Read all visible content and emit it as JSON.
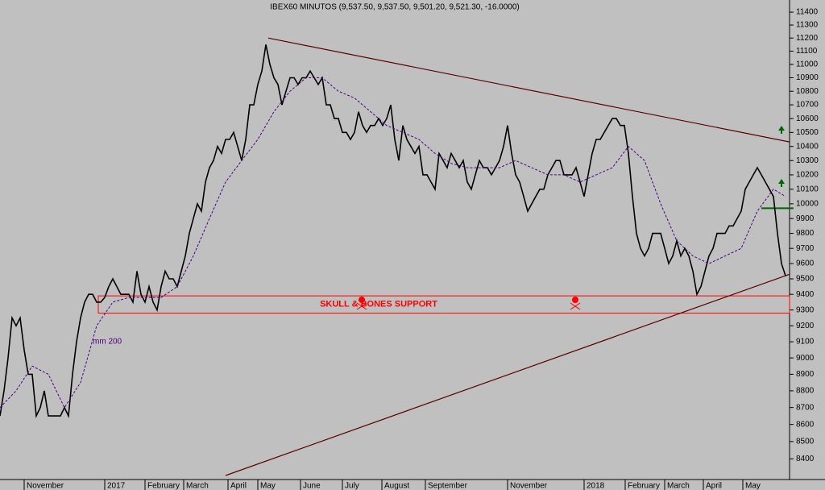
{
  "chart_data": {
    "type": "line",
    "title": "IBEX60 MINUTOS (9,537.50, 9,537.50, 9,501.20, 9,521.30, -16.0000)",
    "log_scale": true,
    "xlim": [
      0,
      196
    ],
    "ylim": [
      8305,
      11495
    ],
    "yticks": [
      8400,
      8500,
      8600,
      8700,
      8800,
      8900,
      9000,
      9100,
      9200,
      9300,
      9400,
      9500,
      9600,
      9700,
      9800,
      9900,
      10000,
      10100,
      10200,
      10300,
      10400,
      10500,
      10600,
      10700,
      10800,
      10900,
      11000,
      11100,
      11200,
      11300,
      11400
    ],
    "xticks": [
      {
        "value": 6,
        "label": "November"
      },
      {
        "value": 26,
        "label": "2017"
      },
      {
        "value": 36,
        "label": "February"
      },
      {
        "value": 45.6,
        "label": "March"
      },
      {
        "value": 56.6,
        "label": "April"
      },
      {
        "value": 64,
        "label": "May"
      },
      {
        "value": 74.6,
        "label": "June"
      },
      {
        "value": 85,
        "label": "July"
      },
      {
        "value": 94.8,
        "label": "August"
      },
      {
        "value": 105.6,
        "label": "September"
      },
      {
        "value": 126,
        "label": "November"
      },
      {
        "value": 145,
        "label": "2018"
      },
      {
        "value": 155.2,
        "label": "February"
      },
      {
        "value": 165,
        "label": "March"
      },
      {
        "value": 174.6,
        "label": "April"
      },
      {
        "value": 184.4,
        "label": "May"
      }
    ],
    "series": [
      {
        "color": "#000000",
        "x": [
          0,
          1,
          2,
          3,
          4,
          5,
          6,
          7,
          8,
          9,
          10,
          11,
          12,
          13,
          14,
          15,
          16,
          17,
          18,
          19,
          20,
          21,
          22,
          23,
          24,
          25,
          26,
          27,
          28,
          29,
          30,
          31,
          32,
          33,
          34,
          35,
          36,
          37,
          38,
          39,
          40,
          41,
          42,
          43,
          44,
          45,
          46,
          47,
          48,
          49,
          50,
          51,
          52,
          53,
          54,
          55,
          56,
          57,
          58,
          59,
          60,
          61,
          62,
          63,
          64,
          65,
          66,
          67,
          68,
          69,
          70,
          71,
          72,
          73,
          74,
          75,
          76,
          77,
          78,
          79,
          80,
          81,
          82,
          83,
          84,
          85,
          86,
          87,
          88,
          89,
          90,
          91,
          92,
          93,
          94,
          95,
          96,
          97,
          98,
          99,
          100,
          101,
          102,
          103,
          104,
          105,
          106,
          107,
          108,
          109,
          110,
          111,
          112,
          113,
          114,
          115,
          116,
          117,
          118,
          119,
          120,
          121,
          122,
          123,
          124,
          125,
          126,
          127,
          128,
          129,
          130,
          131,
          132,
          133,
          134,
          135,
          136,
          137,
          138,
          139,
          140,
          141,
          142,
          143,
          144,
          145,
          146,
          147,
          148,
          149,
          150,
          151,
          152,
          153,
          154,
          155,
          156,
          157,
          158,
          159,
          160,
          161,
          162,
          163,
          164,
          165,
          166,
          167,
          168,
          169,
          170,
          171,
          172,
          173,
          174,
          175,
          176,
          177,
          178,
          179,
          180,
          181,
          182,
          183,
          184,
          185,
          186,
          187,
          188,
          189,
          190,
          191,
          192,
          193,
          194,
          195
        ],
        "values": [
          8650,
          8800,
          9000,
          9250,
          9200,
          9250,
          9050,
          8900,
          8900,
          8650,
          8700,
          8800,
          8650,
          8650,
          8650,
          8650,
          8700,
          8650,
          8900,
          9100,
          9250,
          9350,
          9400,
          9400,
          9350,
          9350,
          9380,
          9450,
          9500,
          9450,
          9400,
          9400,
          9400,
          9350,
          9550,
          9400,
          9350,
          9450,
          9350,
          9300,
          9450,
          9550,
          9500,
          9500,
          9450,
          9550,
          9650,
          9800,
          9900,
          10000,
          9950,
          10150,
          10250,
          10300,
          10400,
          10350,
          10450,
          10450,
          10500,
          10400,
          10300,
          10450,
          10700,
          10700,
          10850,
          10950,
          11150,
          11000,
          10900,
          10850,
          10700,
          10800,
          10900,
          10900,
          10850,
          10900,
          10900,
          10950,
          10900,
          10850,
          10900,
          10700,
          10700,
          10600,
          10600,
          10500,
          10500,
          10450,
          10500,
          10650,
          10550,
          10500,
          10550,
          10550,
          10600,
          10550,
          10600,
          10700,
          10450,
          10300,
          10550,
          10450,
          10400,
          10350,
          10400,
          10200,
          10200,
          10150,
          10100,
          10350,
          10300,
          10250,
          10350,
          10300,
          10250,
          10300,
          10150,
          10100,
          10200,
          10300,
          10250,
          10250,
          10200,
          10250,
          10300,
          10400,
          10550,
          10350,
          10200,
          10150,
          10050,
          9950,
          10000,
          10050,
          10100,
          10100,
          10200,
          10250,
          10300,
          10300,
          10200,
          10200,
          10200,
          10250,
          10150,
          10050,
          10200,
          10350,
          10450,
          10450,
          10500,
          10550,
          10600,
          10600,
          10550,
          10550,
          10350,
          10050,
          9800,
          9700,
          9650,
          9700,
          9800,
          9800,
          9800,
          9700,
          9600,
          9650,
          9750,
          9650,
          9700,
          9650,
          9550,
          9400,
          9450,
          9550,
          9650,
          9700,
          9800,
          9800,
          9800,
          9850,
          9850,
          9900,
          9950,
          10100,
          10150,
          10200,
          10250,
          10200,
          10150,
          10100,
          10050,
          9800,
          9600,
          9520
        ]
      },
      {
        "color": "#4b0082",
        "dashed": true,
        "x": [
          0,
          4,
          8,
          12,
          16,
          20,
          24,
          28,
          32,
          36,
          40,
          44,
          48,
          52,
          56,
          60,
          64,
          68,
          72,
          76,
          80,
          84,
          88,
          92,
          96,
          100,
          104,
          108,
          112,
          116,
          120,
          124,
          128,
          132,
          136,
          140,
          144,
          148,
          152,
          156,
          160,
          164,
          168,
          172,
          176,
          180,
          184,
          188,
          192,
          195
        ],
        "values": [
          8700,
          8800,
          8950,
          8900,
          8700,
          8850,
          9200,
          9350,
          9380,
          9380,
          9380,
          9450,
          9650,
          9900,
          10150,
          10300,
          10450,
          10650,
          10800,
          10900,
          10900,
          10800,
          10750,
          10650,
          10550,
          10500,
          10450,
          10350,
          10280,
          10250,
          10250,
          10250,
          10300,
          10250,
          10200,
          10200,
          10150,
          10200,
          10250,
          10400,
          10300,
          10000,
          9750,
          9650,
          9600,
          9650,
          9700,
          9950,
          10100,
          10050
        ]
      }
    ],
    "annotations": [
      {
        "text": "mm 200",
        "x": 23,
        "y": 9100
      },
      {
        "text": "SKULL & BONES SUPPORT",
        "x": 94,
        "y": 9335
      }
    ],
    "trendlines": [
      {
        "x": [
          66.6,
          196
        ],
        "y": [
          11200,
          10432
        ],
        "color": "#5a0000"
      },
      {
        "x": [
          56,
          196
        ],
        "y": [
          8305,
          9530
        ],
        "color": "#5a0000"
      }
    ],
    "support_zone": {
      "x": [
        24.4,
        196
      ],
      "y": [
        9280,
        9390
      ],
      "color": "#ff0000"
    },
    "level_line": {
      "x": [
        189,
        197
      ],
      "y": 9970,
      "color": "#006400"
    }
  }
}
